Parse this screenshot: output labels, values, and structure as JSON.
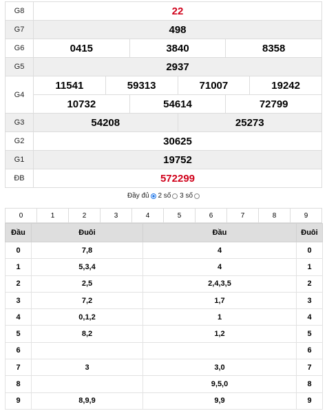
{
  "results": {
    "g8": {
      "label": "G8",
      "values": [
        "22"
      ]
    },
    "g7": {
      "label": "G7",
      "values": [
        "498"
      ]
    },
    "g6": {
      "label": "G6",
      "values": [
        "0415",
        "3840",
        "8358"
      ]
    },
    "g5": {
      "label": "G5",
      "values": [
        "2937"
      ]
    },
    "g4": {
      "label": "G4",
      "row1": [
        "11541",
        "59313",
        "71007",
        "19242"
      ],
      "row2": [
        "10732",
        "54614",
        "72799"
      ]
    },
    "g3": {
      "label": "G3",
      "values": [
        "54208",
        "25273"
      ]
    },
    "g2": {
      "label": "G2",
      "values": [
        "30625"
      ]
    },
    "g1": {
      "label": "G1",
      "values": [
        "19752"
      ]
    },
    "db": {
      "label": "ĐB",
      "values": [
        "572299"
      ]
    }
  },
  "options": {
    "full_label": "Đầy đủ",
    "two_label": "2 số",
    "three_label": "3 số",
    "selected": "Đầy đủ"
  },
  "digits": [
    "0",
    "1",
    "2",
    "3",
    "4",
    "5",
    "6",
    "7",
    "8",
    "9"
  ],
  "stats": {
    "headers": [
      "Đầu",
      "Đuôi",
      "Đầu",
      "Đuôi"
    ],
    "rows": [
      {
        "k": "0",
        "tail": "7,8",
        "head": "4",
        "k2": "0"
      },
      {
        "k": "1",
        "tail": "5,3,4",
        "head": "4",
        "k2": "1"
      },
      {
        "k": "2",
        "tail": "2,5",
        "head": "2,4,3,5",
        "k2": "2"
      },
      {
        "k": "3",
        "tail": "7,2",
        "head": "1,7",
        "k2": "3"
      },
      {
        "k": "4",
        "tail": "0,1,2",
        "head": "1",
        "k2": "4"
      },
      {
        "k": "5",
        "tail": "8,2",
        "head": "1,2",
        "k2": "5"
      },
      {
        "k": "6",
        "tail": "",
        "head": "",
        "k2": "6"
      },
      {
        "k": "7",
        "tail": "3",
        "head": "3,0",
        "k2": "7"
      },
      {
        "k": "8",
        "tail": "",
        "head": "9,5,0",
        "k2": "8"
      },
      {
        "k": "9",
        "tail": "8,9,9",
        "head": "9,9",
        "k2": "9"
      }
    ]
  },
  "colors": {
    "special": "#d0021b",
    "accent": "#1a73e8"
  }
}
